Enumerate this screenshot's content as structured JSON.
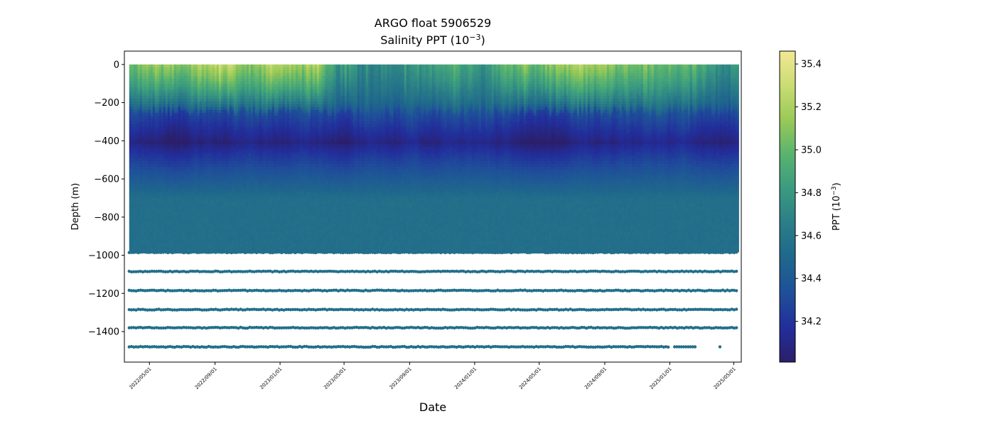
{
  "chart_data": {
    "type": "scatter",
    "title": "ARGO float 5906529",
    "subtitle_prefix": "Salinity PPT (10",
    "subtitle_sup": "−3",
    "subtitle_suffix": ")",
    "xlabel": "Date",
    "ylabel": "Depth (m)",
    "x_range": [
      "2022-03-15",
      "2025-05-15"
    ],
    "x_tick_labels": [
      "2022/05/01",
      "2022/09/01",
      "2023/01/01",
      "2023/05/01",
      "2023/09/01",
      "2024/01/01",
      "2024/05/01",
      "2024/09/01",
      "2025/01/01",
      "2025/05/01"
    ],
    "ylim": [
      -1560,
      70
    ],
    "y_ticks": [
      0,
      -200,
      -400,
      -600,
      -800,
      -1000,
      -1200,
      -1400
    ],
    "y_tick_labels": [
      "0",
      "−200",
      "−400",
      "−600",
      "−800",
      "−1000",
      "−1200",
      "−1400"
    ],
    "profile_dates": [
      "2022-03-24",
      "2025-05-10"
    ],
    "profile_depth_range": [
      0,
      -975
    ],
    "deep_sample_depths": [
      -985,
      -1085,
      -1185,
      -1285,
      -1380,
      -1480
    ],
    "deep_sample_last_isolated_date": "2025-04-05",
    "dense_profile_model": {
      "surface_salinity": 35.0,
      "halocline_depth": -250,
      "minimum_salinity": 34.05,
      "minimum_depth": -410,
      "deep_salinity": 34.55
    },
    "colorbar": {
      "label_prefix": "PPT (10",
      "label_sup": "−3",
      "label_suffix": ")",
      "range": [
        34.01,
        35.46
      ],
      "ticks": [
        34.2,
        34.4,
        34.6,
        34.8,
        35.0,
        35.2,
        35.4
      ],
      "tick_labels": [
        "34.2",
        "34.4",
        "34.6",
        "34.8",
        "35.0",
        "35.2",
        "35.4"
      ],
      "colormap": "haline",
      "colors": [
        "#2b1f6b",
        "#222e9b",
        "#1f4f9a",
        "#1f678c",
        "#2a7d87",
        "#3a9a80",
        "#58b36f",
        "#99c957",
        "#c9dc72",
        "#f2e896"
      ]
    }
  }
}
